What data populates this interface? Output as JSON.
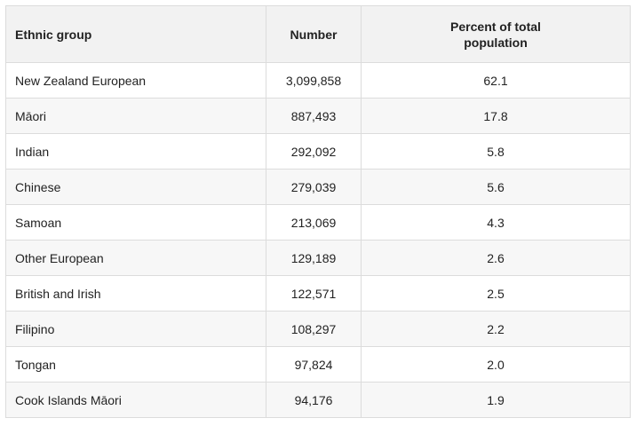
{
  "table": {
    "header": [
      "Ethnic group",
      "Number",
      "Percent of total population"
    ],
    "rows": [
      [
        "New Zealand European",
        "3,099,858",
        "62.1"
      ],
      [
        "Māori",
        "887,493",
        "17.8"
      ],
      [
        "Indian",
        "292,092",
        "5.8"
      ],
      [
        "Chinese",
        "279,039",
        "5.6"
      ],
      [
        "Samoan",
        "213,069",
        "4.3"
      ],
      [
        "Other European",
        "129,189",
        "2.6"
      ],
      [
        "British and Irish",
        "122,571",
        "2.5"
      ],
      [
        "Filipino",
        "108,297",
        "2.2"
      ],
      [
        "Tongan",
        "97,824",
        "2.0"
      ],
      [
        "Cook Islands Māori",
        "94,176",
        "1.9"
      ]
    ]
  }
}
